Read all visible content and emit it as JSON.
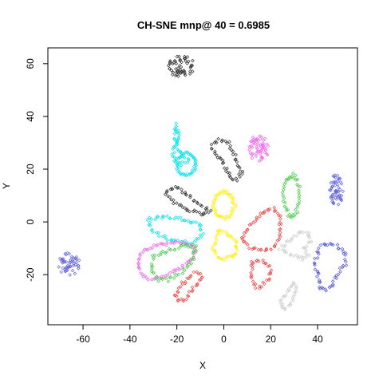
{
  "chart_data": {
    "type": "scatter",
    "title": "CH-SNE mnp@ 40 = 0.6985",
    "xlabel": "X",
    "ylabel": "Y",
    "xlim": [
      -75,
      57
    ],
    "ylim": [
      -39,
      66
    ],
    "xticks": [
      -60,
      -40,
      -20,
      0,
      20,
      40
    ],
    "yticks": [
      -20,
      0,
      20,
      40,
      60
    ],
    "x_tick_labels": [
      "-60",
      "-40",
      "-20",
      "0",
      "20",
      "40"
    ],
    "y_tick_labels": [
      "-20",
      "0",
      "20",
      "40",
      "60"
    ],
    "marker": "open-diamond",
    "grid": false,
    "legend": "none",
    "clusters": [
      {
        "color": "#303030",
        "shape": "blob",
        "center": [
          -18,
          59
        ],
        "rx": 6,
        "ry": 4.5
      },
      {
        "color": "#00e5ee",
        "shape": "path",
        "points": [
          [
            -20,
            37
          ],
          [
            -21,
            33
          ],
          [
            -20,
            28
          ],
          [
            -17,
            25
          ],
          [
            -15,
            23
          ],
          [
            -18,
            22
          ],
          [
            -20,
            23
          ],
          [
            -22,
            25
          ],
          [
            -21,
            28
          ],
          [
            -19,
            31
          ]
        ]
      },
      {
        "color": "#00e5ee",
        "shape": "ring",
        "center": [
          -16,
          22
        ],
        "rx": 4,
        "ry": 4
      },
      {
        "color": "#303030",
        "shape": "path",
        "points": [
          [
            -5,
            29
          ],
          [
            -2,
            31
          ],
          [
            2,
            30
          ],
          [
            5,
            25
          ],
          [
            6,
            21
          ],
          [
            8,
            19
          ],
          [
            6,
            16
          ],
          [
            3,
            16
          ],
          [
            2,
            19
          ],
          [
            -1,
            23
          ],
          [
            -4,
            26
          ]
        ]
      },
      {
        "color": "#ee66ee",
        "shape": "blob",
        "center": [
          15,
          28
        ],
        "rx": 4.5,
        "ry": 5.5
      },
      {
        "color": "#44cc44",
        "shape": "ring",
        "center": [
          29,
          10
        ],
        "rx": 3.5,
        "ry": 7.5
      },
      {
        "color": "#6666dd",
        "shape": "blob",
        "center": [
          48,
          12
        ],
        "rx": 3,
        "ry": 6.5
      },
      {
        "color": "#303030",
        "shape": "path",
        "points": [
          [
            -24,
            12
          ],
          [
            -20,
            13
          ],
          [
            -14,
            9
          ],
          [
            -9,
            6
          ],
          [
            -6,
            4
          ],
          [
            -10,
            3
          ],
          [
            -16,
            5
          ],
          [
            -22,
            8
          ],
          [
            -25,
            10
          ]
        ]
      },
      {
        "color": "#ffee00",
        "shape": "ring",
        "center": [
          0,
          6.5
        ],
        "rx": 4.5,
        "ry": 5
      },
      {
        "color": "#00e5ee",
        "shape": "path",
        "points": [
          [
            -32,
            1
          ],
          [
            -26,
            2
          ],
          [
            -16,
            1
          ],
          [
            -10,
            -1
          ],
          [
            -9,
            -5
          ],
          [
            -14,
            -8
          ],
          [
            -22,
            -7
          ],
          [
            -30,
            -4
          ],
          [
            -32,
            -1
          ]
        ]
      },
      {
        "color": "#ffee00",
        "shape": "path",
        "points": [
          [
            -2,
            -3
          ],
          [
            0,
            -4
          ],
          [
            3,
            -5
          ],
          [
            5,
            -7
          ],
          [
            6,
            -11
          ],
          [
            4,
            -13
          ],
          [
            0,
            -14
          ],
          [
            -3,
            -13
          ],
          [
            -5,
            -10
          ],
          [
            -3,
            -7
          ]
        ]
      },
      {
        "color": "#ee4444",
        "shape": "path",
        "points": [
          [
            8,
            -5
          ],
          [
            12,
            -1
          ],
          [
            17,
            4
          ],
          [
            21,
            5
          ],
          [
            24,
            2
          ],
          [
            24,
            -5
          ],
          [
            22,
            -9
          ],
          [
            18,
            -11
          ],
          [
            12,
            -10
          ],
          [
            9,
            -8
          ]
        ]
      },
      {
        "color": "#cccccc",
        "shape": "path",
        "points": [
          [
            24,
            -10
          ],
          [
            28,
            -7
          ],
          [
            32,
            -4
          ],
          [
            36,
            -4
          ],
          [
            37,
            -7
          ],
          [
            34,
            -10
          ],
          [
            36,
            -13
          ],
          [
            33,
            -14
          ],
          [
            28,
            -12
          ]
        ]
      },
      {
        "color": "#5555dd",
        "shape": "path",
        "points": [
          [
            41,
            -10
          ],
          [
            43,
            -8
          ],
          [
            48,
            -9
          ],
          [
            52,
            -12
          ],
          [
            52,
            -16
          ],
          [
            48,
            -20
          ],
          [
            46,
            -24
          ],
          [
            44,
            -26
          ],
          [
            41,
            -25
          ],
          [
            40,
            -20
          ],
          [
            39,
            -15
          ]
        ]
      },
      {
        "color": "#6666dd",
        "shape": "blob",
        "center": [
          -66,
          -16
        ],
        "rx": 5,
        "ry": 4.5
      },
      {
        "color": "#ee66ee",
        "shape": "path",
        "points": [
          [
            -35,
            -11
          ],
          [
            -30,
            -9
          ],
          [
            -22,
            -8
          ],
          [
            -16,
            -8
          ],
          [
            -12,
            -10
          ],
          [
            -13,
            -14
          ],
          [
            -18,
            -17
          ],
          [
            -24,
            -20
          ],
          [
            -30,
            -22
          ],
          [
            -35,
            -20
          ],
          [
            -37,
            -15
          ]
        ]
      },
      {
        "color": "#44cc44",
        "shape": "path",
        "points": [
          [
            -30,
            -13
          ],
          [
            -24,
            -11
          ],
          [
            -17,
            -9
          ],
          [
            -12,
            -9
          ],
          [
            -13,
            -14
          ],
          [
            -18,
            -19
          ],
          [
            -24,
            -22
          ],
          [
            -28,
            -22
          ],
          [
            -31,
            -18
          ]
        ]
      },
      {
        "color": "#ee4444",
        "shape": "path",
        "points": [
          [
            12,
            -15
          ],
          [
            17,
            -15
          ],
          [
            20,
            -17
          ],
          [
            19,
            -22
          ],
          [
            15,
            -25
          ],
          [
            13,
            -24
          ],
          [
            12,
            -20
          ]
        ]
      },
      {
        "color": "#ee4444",
        "shape": "path",
        "points": [
          [
            -12,
            -19
          ],
          [
            -9,
            -21
          ],
          [
            -13,
            -25
          ],
          [
            -16,
            -29
          ],
          [
            -19,
            -30
          ],
          [
            -21,
            -28
          ],
          [
            -18,
            -24
          ],
          [
            -15,
            -21
          ]
        ]
      },
      {
        "color": "#cccccc",
        "shape": "path",
        "points": [
          [
            30,
            -23
          ],
          [
            31,
            -26
          ],
          [
            30,
            -29
          ],
          [
            28,
            -32
          ],
          [
            25,
            -33
          ],
          [
            24,
            -30
          ],
          [
            27,
            -27
          ]
        ]
      }
    ]
  }
}
